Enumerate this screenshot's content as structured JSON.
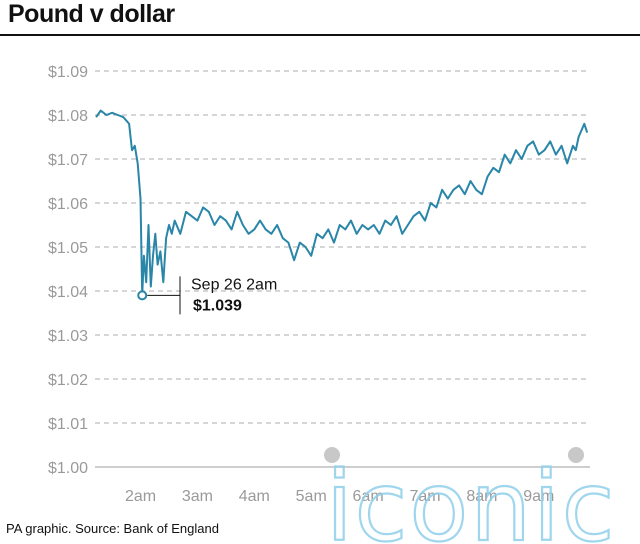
{
  "header": {
    "title": "Pound v dollar"
  },
  "footer": {
    "source": "PA graphic. Source: Bank of England"
  },
  "colors": {
    "line": "#2a86a8",
    "grid": "#bdbdbd",
    "axis_text": "#9a9a9a",
    "text": "#111111",
    "watermark": "#8fd0ec"
  },
  "watermark": {
    "text": "iconic"
  },
  "chart_data": {
    "type": "line",
    "title": "Pound v dollar",
    "xlabel": "",
    "ylabel": "",
    "x_tick_labels": [
      "2am",
      "3am",
      "4am",
      "5am",
      "6am",
      "7am",
      "8am",
      "9am"
    ],
    "x_tick_values": [
      2,
      3,
      4,
      5,
      6,
      7,
      8,
      9
    ],
    "xlim": [
      1.2,
      9.9
    ],
    "y_tick_labels": [
      "$1.09",
      "$1.08",
      "$1.07",
      "$1.06",
      "$1.05",
      "$1.04",
      "$1.03",
      "$1.02",
      "$1.01",
      "$1.00"
    ],
    "y_tick_values": [
      1.09,
      1.08,
      1.07,
      1.06,
      1.05,
      1.04,
      1.03,
      1.02,
      1.01,
      1.0
    ],
    "ylim": [
      1.0,
      1.09
    ],
    "grid": "horizontal dashed",
    "series": [
      {
        "x": [
          1.22,
          1.3,
          1.4,
          1.5,
          1.6,
          1.7,
          1.8,
          1.85,
          1.9,
          1.95,
          2.0,
          2.03,
          2.06,
          2.1,
          2.14,
          2.18,
          2.22,
          2.26,
          2.3,
          2.35,
          2.4,
          2.45,
          2.5,
          2.55,
          2.6,
          2.7,
          2.8,
          2.9,
          3.0,
          3.1,
          3.2,
          3.3,
          3.4,
          3.5,
          3.6,
          3.7,
          3.8,
          3.9,
          4.0,
          4.1,
          4.2,
          4.3,
          4.4,
          4.5,
          4.6,
          4.7,
          4.8,
          4.9,
          5.0,
          5.1,
          5.2,
          5.3,
          5.4,
          5.5,
          5.6,
          5.7,
          5.8,
          5.9,
          6.0,
          6.1,
          6.2,
          6.3,
          6.4,
          6.5,
          6.6,
          6.7,
          6.8,
          6.9,
          7.0,
          7.1,
          7.2,
          7.3,
          7.4,
          7.5,
          7.6,
          7.7,
          7.8,
          7.9,
          8.0,
          8.1,
          8.2,
          8.3,
          8.4,
          8.5,
          8.6,
          8.7,
          8.8,
          8.9,
          9.0,
          9.1,
          9.2,
          9.3,
          9.4,
          9.5,
          9.6,
          9.65,
          9.7,
          9.8,
          9.85
        ],
        "y": [
          1.0795,
          1.081,
          1.08,
          1.0805,
          1.08,
          1.0795,
          1.078,
          1.072,
          1.073,
          1.069,
          1.061,
          1.039,
          1.048,
          1.042,
          1.055,
          1.041,
          1.048,
          1.053,
          1.046,
          1.049,
          1.042,
          1.052,
          1.055,
          1.053,
          1.056,
          1.053,
          1.058,
          1.057,
          1.056,
          1.059,
          1.058,
          1.055,
          1.057,
          1.056,
          1.054,
          1.058,
          1.055,
          1.053,
          1.054,
          1.056,
          1.054,
          1.053,
          1.055,
          1.052,
          1.051,
          1.047,
          1.051,
          1.05,
          1.048,
          1.053,
          1.052,
          1.054,
          1.051,
          1.055,
          1.054,
          1.056,
          1.053,
          1.055,
          1.054,
          1.055,
          1.053,
          1.056,
          1.055,
          1.057,
          1.053,
          1.055,
          1.057,
          1.058,
          1.056,
          1.06,
          1.059,
          1.063,
          1.061,
          1.063,
          1.064,
          1.062,
          1.065,
          1.063,
          1.062,
          1.066,
          1.068,
          1.067,
          1.071,
          1.069,
          1.072,
          1.07,
          1.073,
          1.074,
          1.071,
          1.072,
          1.074,
          1.071,
          1.073,
          1.069,
          1.073,
          1.072,
          1.075,
          1.078,
          1.076
        ]
      }
    ],
    "annotation": {
      "x": 2.03,
      "y": 1.039,
      "time_label": "Sep 26 2am",
      "value_label": "$1.039"
    }
  }
}
